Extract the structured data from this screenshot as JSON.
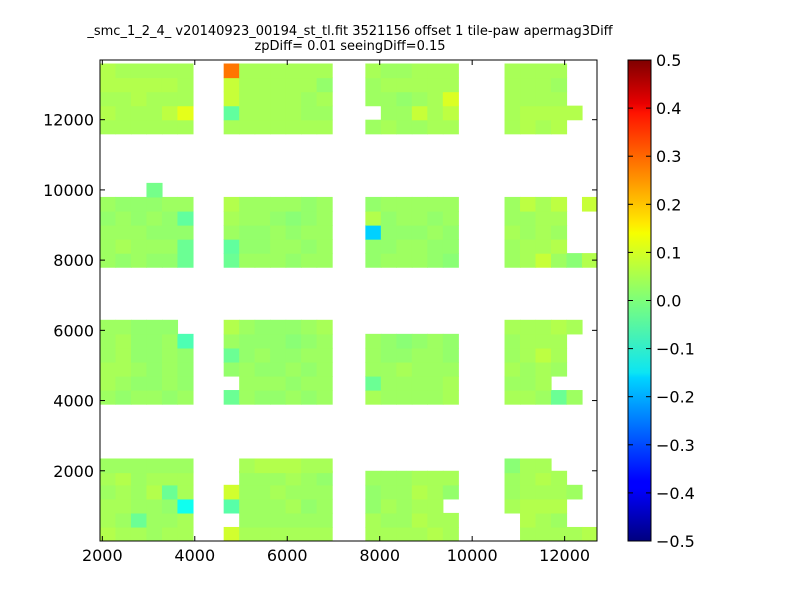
{
  "chart_data": {
    "type": "heatmap",
    "title": "_smc_1_2_4_ v20140923_00194_st_tl.fit 3521156 offset 1 tile-paw apermag3Diff",
    "subtitle": "zpDiff= 0.01 seeingDiff=0.15",
    "xlabel": "",
    "ylabel": "",
    "xlim": [
      1950,
      12700
    ],
    "ylim": [
      0,
      13700
    ],
    "x_ticks": [
      2000,
      4000,
      6000,
      8000,
      10000,
      12000
    ],
    "y_ticks": [
      2000,
      4000,
      6000,
      8000,
      10000,
      12000
    ],
    "colormap": "jet",
    "colorbar": {
      "min": -0.5,
      "max": 0.5,
      "ticks": [
        0.5,
        0.4,
        0.3,
        0.2,
        0.1,
        0.0,
        -0.1,
        -0.2,
        -0.3,
        -0.4,
        -0.5
      ],
      "tick_labels": [
        "0.5",
        "0.4",
        "0.3",
        "0.2",
        "0.1",
        "0.0",
        "−0.1",
        "−0.2",
        "−0.3",
        "−0.4",
        "−0.5"
      ]
    },
    "cell_size": [
      335,
      400
    ],
    "column_x_starts": [
      1950,
      2285,
      2620,
      2955,
      3290,
      3625,
      3960,
      4625,
      4960,
      5295,
      5630,
      5965,
      6300,
      6635,
      7690,
      8025,
      8360,
      8695,
      9030,
      9365,
      9700,
      10700,
      11035,
      11370,
      11705,
      12040,
      12375
    ],
    "row_y_starts": [
      0,
      400,
      800,
      1200,
      1600,
      1950,
      3900,
      4300,
      4700,
      5100,
      5500,
      5900,
      7800,
      8200,
      8600,
      9000,
      9400,
      9800,
      10200,
      11600,
      12000,
      12400,
      12800,
      13200
    ],
    "values": [
      [
        0.05,
        0.04,
        0.04,
        0.03,
        0.04,
        0.04,
        null,
        0.08,
        0.04,
        0.04,
        0.04,
        0.04,
        0.04,
        0.04,
        0.04,
        0.04,
        0.04,
        0.04,
        0.05,
        0.04,
        null,
        null,
        0.04,
        0.04,
        0.04,
        0.04,
        0.05
      ],
      [
        0.04,
        0.03,
        -0.02,
        0.03,
        0.03,
        0.04,
        null,
        null,
        0.03,
        0.03,
        0.03,
        0.03,
        0.03,
        0.03,
        0.04,
        0.03,
        0.03,
        0.05,
        0.04,
        0.04,
        null,
        null,
        0.05,
        0.04,
        0.03,
        null,
        null
      ],
      [
        0.04,
        0.04,
        0.03,
        0.03,
        0.02,
        -0.11,
        null,
        -0.04,
        0.03,
        0.03,
        0.03,
        0.04,
        0.02,
        0.03,
        0.02,
        0.04,
        0.03,
        0.04,
        0.04,
        null,
        null,
        0.04,
        0.05,
        0.05,
        0.05,
        null,
        null
      ],
      [
        0.03,
        0.04,
        0.03,
        0.05,
        -0.02,
        0.04,
        null,
        0.08,
        0.03,
        0.03,
        0.04,
        0.03,
        0.03,
        0.03,
        0.02,
        0.03,
        0.03,
        0.05,
        0.04,
        0.02,
        null,
        0.03,
        0.04,
        0.04,
        0.04,
        0.03,
        null
      ],
      [
        0.04,
        0.05,
        0.03,
        0.04,
        0.04,
        0.04,
        null,
        null,
        0.03,
        0.03,
        0.03,
        0.04,
        0.03,
        0.02,
        0.03,
        0.03,
        0.03,
        0.04,
        0.04,
        0.04,
        null,
        0.03,
        0.04,
        0.05,
        0.04,
        null,
        null
      ],
      [
        0.03,
        0.03,
        0.03,
        0.03,
        0.03,
        0.03,
        null,
        null,
        0.04,
        0.05,
        0.05,
        0.05,
        0.04,
        0.04,
        null,
        null,
        null,
        null,
        null,
        null,
        null,
        0.01,
        0.04,
        0.04,
        null,
        null,
        null
      ],
      [
        0.03,
        0.02,
        0.03,
        0.03,
        0.02,
        0.03,
        null,
        -0.02,
        0.03,
        0.02,
        0.02,
        0.03,
        0.02,
        0.03,
        0.04,
        0.03,
        0.03,
        0.03,
        0.03,
        0.04,
        null,
        0.04,
        0.04,
        0.03,
        -0.02,
        0.03,
        null
      ],
      [
        0.04,
        0.03,
        0.02,
        0.02,
        0.03,
        0.02,
        null,
        null,
        0.03,
        0.03,
        0.03,
        0.02,
        0.03,
        0.03,
        -0.02,
        0.03,
        0.03,
        0.03,
        0.03,
        0.04,
        null,
        0.03,
        0.03,
        0.04,
        null,
        null,
        null
      ],
      [
        0.04,
        0.04,
        0.03,
        0.02,
        0.03,
        0.02,
        null,
        0.02,
        0.03,
        0.02,
        0.02,
        0.03,
        0.02,
        0.03,
        0.03,
        0.03,
        0.04,
        0.03,
        0.03,
        0.03,
        null,
        0.04,
        0.03,
        0.04,
        0.03,
        null,
        null
      ],
      [
        0.03,
        0.04,
        0.02,
        0.02,
        0.03,
        0.02,
        null,
        -0.02,
        0.02,
        0.03,
        0.02,
        0.02,
        0.03,
        0.03,
        0.03,
        0.02,
        0.02,
        0.03,
        0.03,
        0.02,
        null,
        0.03,
        0.04,
        0.06,
        0.04,
        null,
        null
      ],
      [
        0.03,
        0.04,
        0.02,
        0.02,
        0.03,
        -0.05,
        null,
        0.03,
        0.02,
        0.02,
        0.02,
        0.01,
        0.02,
        0.03,
        0.03,
        0.02,
        0.01,
        0.02,
        0.03,
        0.02,
        null,
        0.03,
        0.04,
        0.04,
        0.04,
        null,
        null
      ],
      [
        0.03,
        0.03,
        0.02,
        0.02,
        0.02,
        null,
        null,
        0.05,
        0.03,
        0.02,
        0.02,
        0.02,
        0.03,
        0.04,
        null,
        null,
        null,
        null,
        null,
        null,
        null,
        0.04,
        0.04,
        0.04,
        0.05,
        0.04,
        null
      ],
      [
        0.03,
        0.02,
        0.03,
        0.02,
        0.02,
        -0.02,
        null,
        -0.02,
        0.03,
        0.03,
        0.03,
        0.02,
        0.03,
        0.03,
        0.02,
        0.03,
        0.03,
        0.03,
        0.02,
        0.01,
        null,
        0.03,
        0.04,
        0.07,
        0.03,
        0.01,
        0.05
      ],
      [
        0.03,
        0.04,
        0.03,
        0.03,
        0.03,
        -0.02,
        null,
        -0.03,
        0.02,
        0.02,
        0.03,
        0.03,
        0.02,
        0.03,
        0.02,
        0.02,
        0.03,
        0.03,
        0.02,
        0.02,
        null,
        0.03,
        0.04,
        0.04,
        0.05,
        null,
        null
      ],
      [
        0.03,
        0.03,
        0.03,
        0.02,
        0.02,
        0.02,
        null,
        0.03,
        0.02,
        0.02,
        0.03,
        0.02,
        0.03,
        0.03,
        -0.17,
        0.02,
        0.02,
        0.02,
        0.03,
        0.02,
        null,
        0.04,
        0.03,
        0.04,
        0.03,
        null,
        null
      ],
      [
        0.02,
        0.03,
        0.02,
        0.03,
        0.02,
        -0.03,
        null,
        0.04,
        0.03,
        0.03,
        0.02,
        0.01,
        0.02,
        0.03,
        0.05,
        0.02,
        0.03,
        0.03,
        0.02,
        0.03,
        null,
        0.03,
        0.03,
        0.04,
        0.04,
        null,
        null
      ],
      [
        0.03,
        0.02,
        0.02,
        0.02,
        0.03,
        0.03,
        null,
        0.05,
        0.03,
        0.03,
        0.03,
        0.03,
        0.02,
        0.03,
        0.02,
        0.03,
        0.03,
        0.03,
        0.03,
        0.03,
        null,
        0.03,
        0.06,
        0.04,
        0.06,
        null,
        0.07
      ],
      [
        null,
        null,
        null,
        -0.01,
        null,
        null,
        null,
        null,
        null,
        null,
        null,
        null,
        null,
        null,
        null,
        null,
        null,
        null,
        null,
        null,
        null,
        null,
        null,
        null,
        null,
        null,
        null
      ],
      [
        null,
        null,
        null,
        null,
        null,
        null,
        null,
        null,
        null,
        null,
        null,
        null,
        null,
        null,
        null,
        null,
        null,
        null,
        null,
        null,
        null,
        null,
        null,
        null,
        null,
        null,
        null
      ],
      [
        0.04,
        0.04,
        0.04,
        0.04,
        0.04,
        0.04,
        null,
        0.04,
        0.04,
        0.04,
        0.04,
        0.04,
        0.04,
        0.04,
        0.03,
        0.04,
        0.03,
        0.03,
        0.04,
        0.04,
        null,
        0.04,
        0.05,
        0.04,
        0.05,
        null,
        null
      ],
      [
        0.05,
        0.04,
        0.04,
        0.04,
        0.06,
        0.1,
        null,
        -0.03,
        0.04,
        0.04,
        0.04,
        0.04,
        0.03,
        0.03,
        null,
        0.03,
        0.03,
        0.07,
        0.04,
        0.06,
        null,
        0.04,
        0.05,
        0.05,
        0.05,
        0.05,
        null
      ],
      [
        0.04,
        0.04,
        0.05,
        0.04,
        0.04,
        0.04,
        null,
        0.07,
        0.04,
        0.04,
        0.04,
        0.04,
        0.03,
        0.04,
        0.03,
        0.03,
        0.02,
        0.03,
        0.04,
        0.09,
        null,
        0.04,
        0.04,
        0.04,
        0.04,
        null,
        null
      ],
      [
        0.05,
        0.05,
        0.05,
        0.05,
        0.05,
        0.04,
        null,
        0.07,
        0.04,
        0.04,
        0.04,
        0.04,
        0.04,
        0.02,
        0.03,
        0.04,
        0.04,
        0.04,
        0.04,
        0.04,
        null,
        0.04,
        0.04,
        0.04,
        0.03,
        null,
        null
      ],
      [
        0.05,
        0.04,
        0.04,
        0.04,
        0.04,
        0.04,
        null,
        0.26,
        0.04,
        0.04,
        0.04,
        0.04,
        0.04,
        0.04,
        0.04,
        0.03,
        0.03,
        0.04,
        0.04,
        0.04,
        null,
        0.04,
        0.04,
        0.04,
        0.04,
        null,
        null
      ]
    ]
  }
}
